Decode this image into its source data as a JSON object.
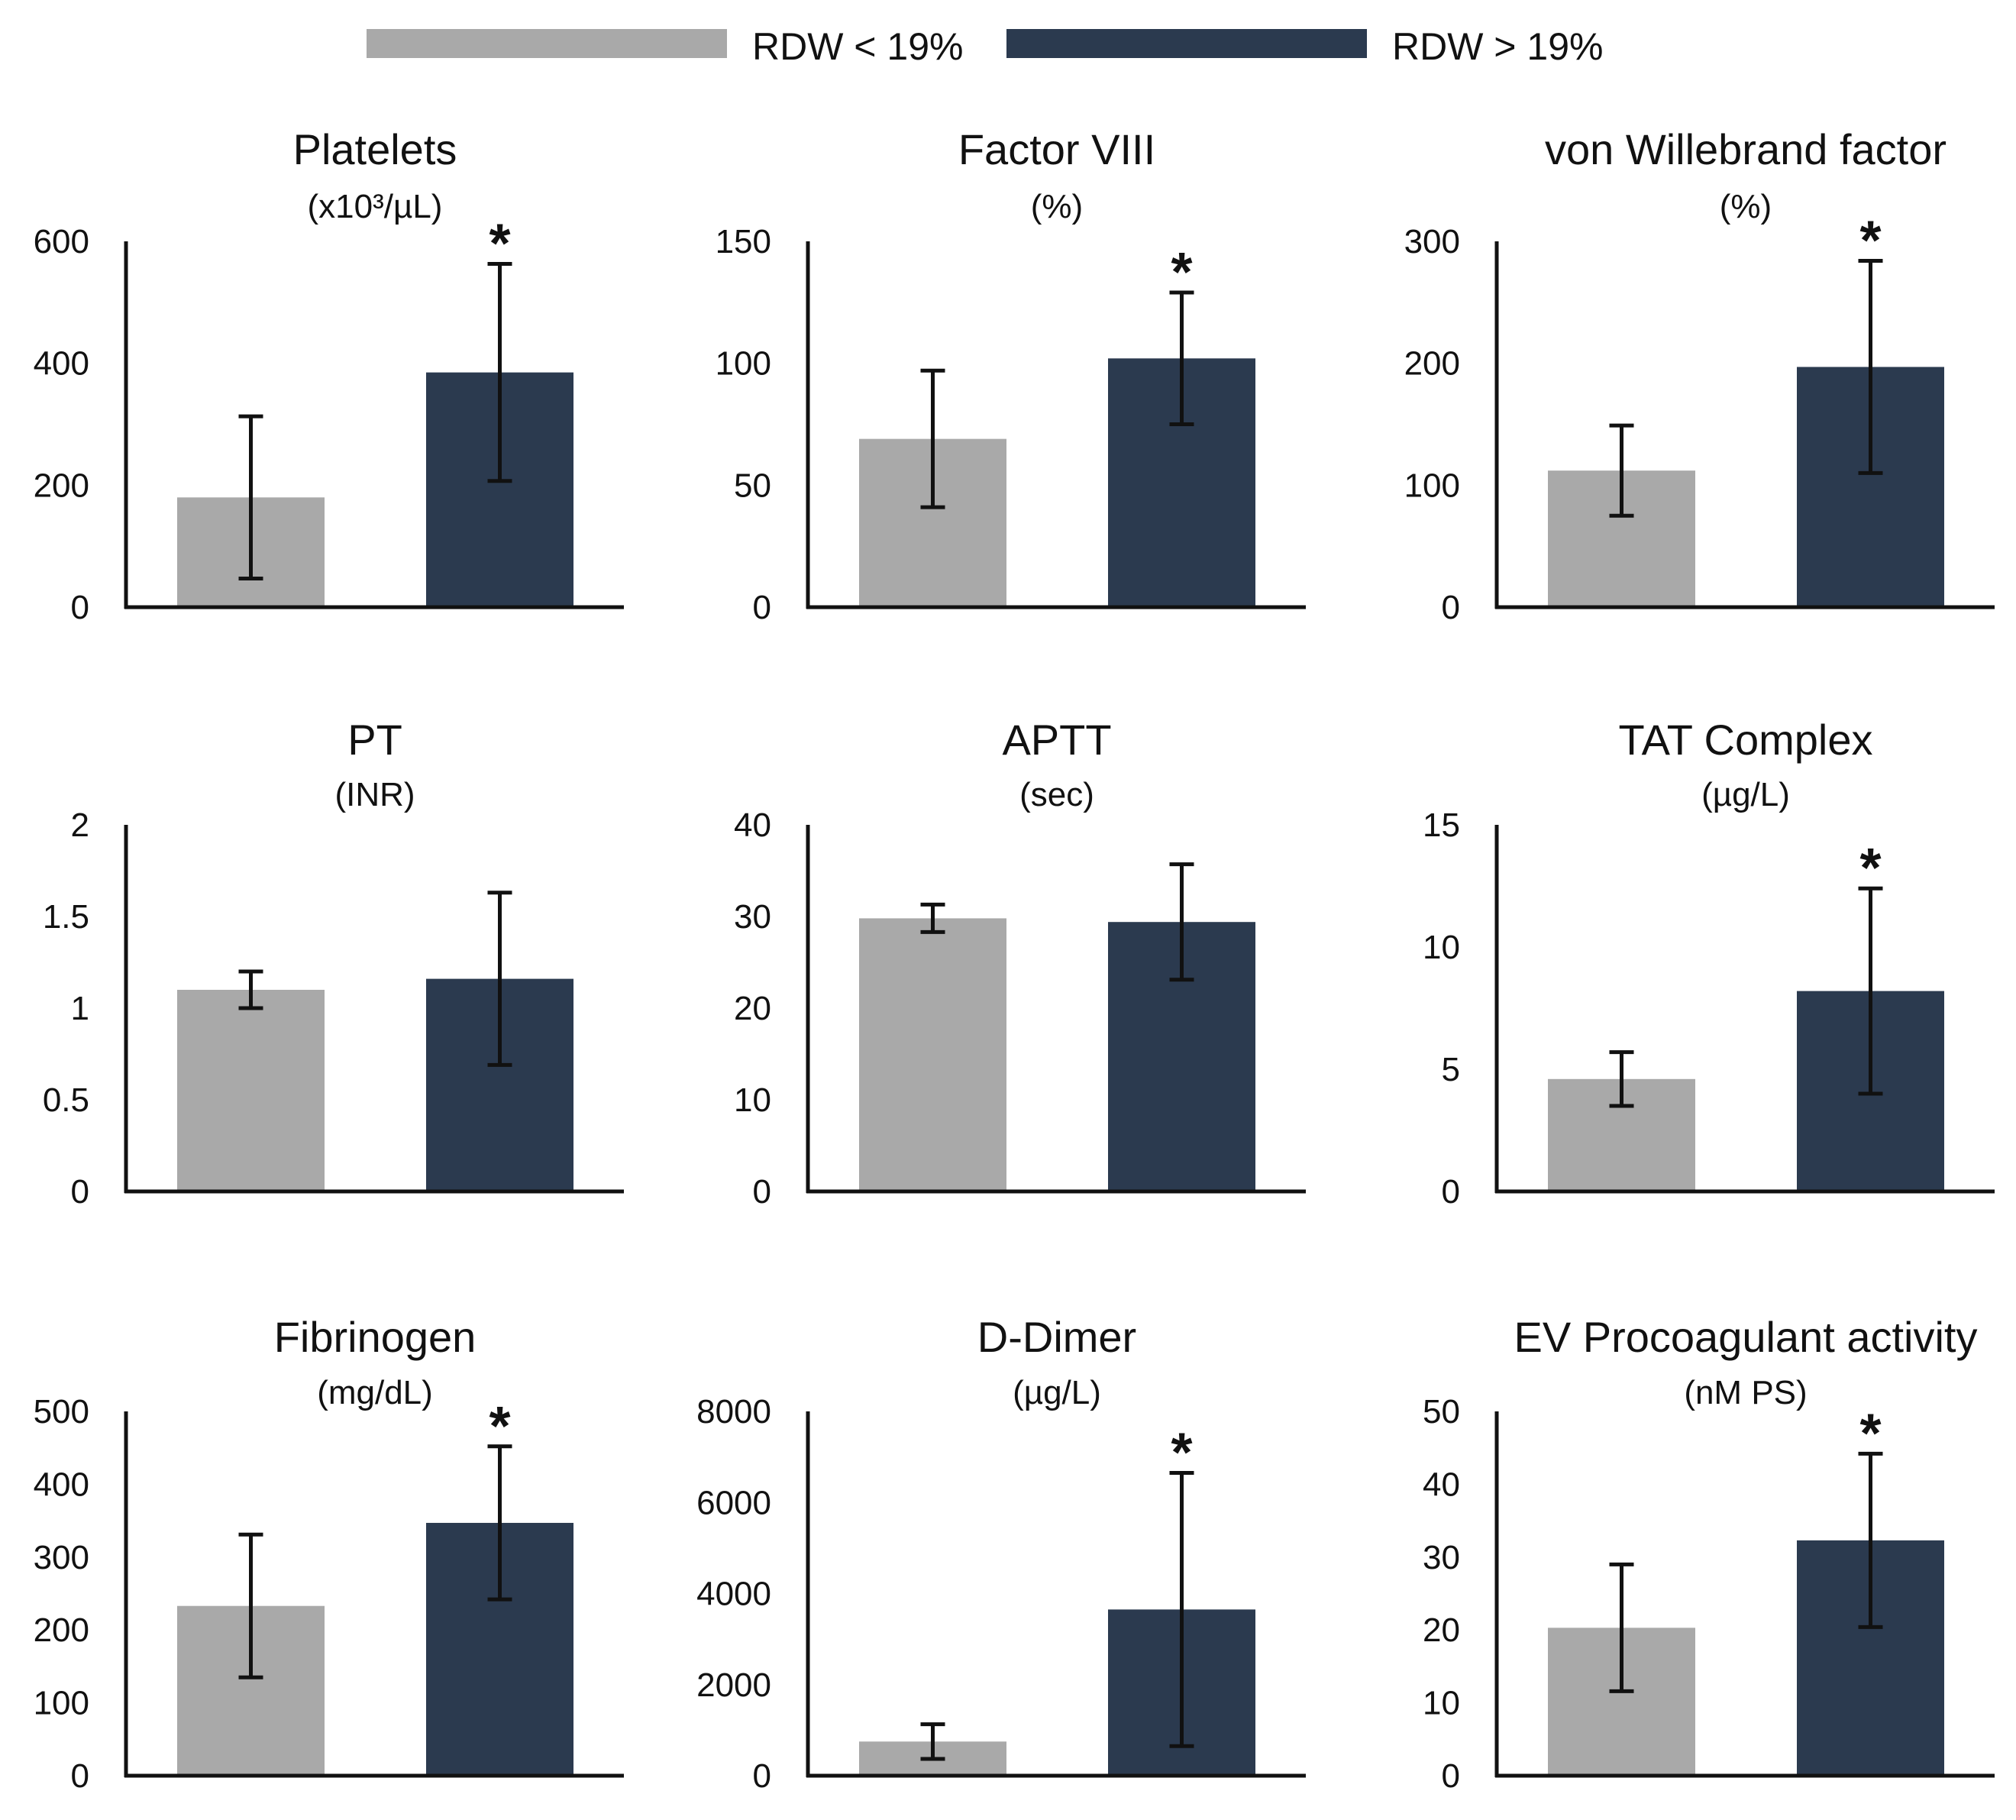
{
  "colors": {
    "low": "#a9a9a9",
    "high": "#2b3a4f",
    "axis": "#111111"
  },
  "legend": {
    "low_label": "RDW < 19%",
    "high_label": "RDW > 19%"
  },
  "chart_data": [
    {
      "type": "bar",
      "title": "Platelets",
      "ylabel": "(x10³/µL)",
      "ylim": [
        0,
        600
      ],
      "yticks": [
        "0",
        "200",
        "400",
        "600"
      ],
      "series": [
        {
          "name": "RDW < 19%",
          "value": 180,
          "error": 133
        },
        {
          "name": "RDW > 19%",
          "value": 385,
          "error": 178
        }
      ],
      "significant": "*"
    },
    {
      "type": "bar",
      "title": "Factor VIII",
      "ylabel": "(%)",
      "ylim": [
        0,
        150
      ],
      "yticks": [
        "0",
        "50",
        "100",
        "150"
      ],
      "series": [
        {
          "name": "RDW < 19%",
          "value": 69,
          "error": 28
        },
        {
          "name": "RDW > 19%",
          "value": 102,
          "error": 27
        }
      ],
      "significant": "*"
    },
    {
      "type": "bar",
      "title": "von Willebrand factor",
      "ylabel": "(%)",
      "ylim": [
        0,
        300
      ],
      "yticks": [
        "0",
        "100",
        "200",
        "300"
      ],
      "series": [
        {
          "name": "RDW < 19%",
          "value": 112,
          "error": 37
        },
        {
          "name": "RDW > 19%",
          "value": 197,
          "error": 87
        }
      ],
      "significant": "*"
    },
    {
      "type": "bar",
      "title": "PT",
      "ylabel": "(INR)",
      "ylim": [
        0,
        2
      ],
      "yticks": [
        "0",
        "0.5",
        "1",
        "1.5",
        "2"
      ],
      "series": [
        {
          "name": "RDW < 19%",
          "value": 1.1,
          "error": 0.1
        },
        {
          "name": "RDW > 19%",
          "value": 1.16,
          "error": 0.47
        }
      ],
      "significant": ""
    },
    {
      "type": "bar",
      "title": "APTT",
      "ylabel": "(sec)",
      "ylim": [
        0,
        40
      ],
      "yticks": [
        "0",
        "10",
        "20",
        "30",
        "40"
      ],
      "series": [
        {
          "name": "RDW < 19%",
          "value": 29.8,
          "error": 1.5
        },
        {
          "name": "RDW > 19%",
          "value": 29.4,
          "error": 6.3
        }
      ],
      "significant": ""
    },
    {
      "type": "bar",
      "title": "TAT Complex",
      "ylabel": "(µg/L)",
      "ylim": [
        0,
        15
      ],
      "yticks": [
        "0",
        "5",
        "10",
        "15"
      ],
      "series": [
        {
          "name": "RDW < 19%",
          "value": 4.6,
          "error": 1.1
        },
        {
          "name": "RDW > 19%",
          "value": 8.2,
          "error": 4.2
        }
      ],
      "significant": "*"
    },
    {
      "type": "bar",
      "title": "Fibrinogen",
      "ylabel": "(mg/dL)",
      "ylim": [
        0,
        500
      ],
      "yticks": [
        "0",
        "100",
        "200",
        "300",
        "400",
        "500"
      ],
      "series": [
        {
          "name": "RDW < 19%",
          "value": 233,
          "error": 98
        },
        {
          "name": "RDW > 19%",
          "value": 347,
          "error": 105
        }
      ],
      "significant": "*"
    },
    {
      "type": "bar",
      "title": "D-Dimer",
      "ylabel": "(µg/L)",
      "ylim": [
        0,
        8000
      ],
      "yticks": [
        "0",
        "2000",
        "4000",
        "6000",
        "8000"
      ],
      "series": [
        {
          "name": "RDW < 19%",
          "value": 750,
          "error": 380
        },
        {
          "name": "RDW > 19%",
          "value": 3650,
          "error": 3000
        }
      ],
      "significant": "*"
    },
    {
      "type": "bar",
      "title": "EV Procoagulant activity",
      "ylabel": "(nM PS)",
      "ylim": [
        0,
        50
      ],
      "yticks": [
        "0",
        "10",
        "20",
        "30",
        "40",
        "50"
      ],
      "series": [
        {
          "name": "RDW < 19%",
          "value": 20.3,
          "error": 8.7
        },
        {
          "name": "RDW > 19%",
          "value": 32.3,
          "error": 11.9
        }
      ],
      "significant": "*"
    }
  ]
}
